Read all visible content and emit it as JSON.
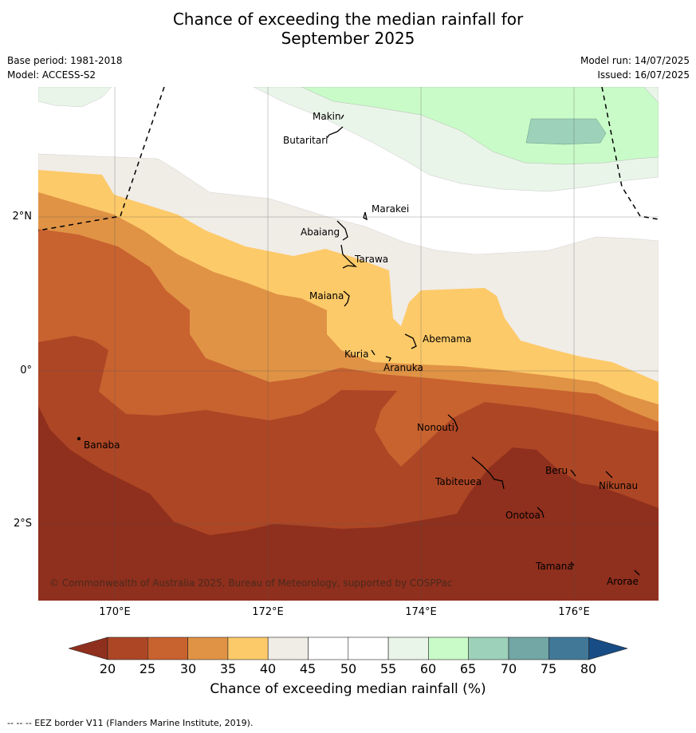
{
  "title_line1": "Chance of exceeding the median rainfall for",
  "title_line2": "September 2025",
  "base_period": "Base period: 1981-2018",
  "model": "Model: ACCESS-S2",
  "model_run": "Model run: 14/07/2025",
  "issued": "Issued: 16/07/2025",
  "copyright": "© Commonwealth of Australia 2025, Bureau of Meteorology, supported by COSPPac",
  "lat_labels": [
    "2°N",
    "0°",
    "2°S"
  ],
  "lon_labels": [
    "170°E",
    "172°E",
    "174°E",
    "176°E"
  ],
  "places": {
    "makin": "Makin",
    "butaritari": "Butaritari",
    "marakei": "Marakei",
    "abaiang": "Abaiang",
    "tarawa": "Tarawa",
    "maiana": "Maiana",
    "abemama": "Abemama",
    "kuria": "Kuria",
    "aranuka": "Aranuka",
    "nonouti": "Nonouti",
    "banaba": "Banaba",
    "beru": "Beru",
    "tabiteuea": "Tabiteuea",
    "nikunau": "Nikunau",
    "onotoa": "Onotoa",
    "tamana": "Tamana",
    "arorae": "Arorae"
  },
  "colorbar_ticks": [
    "20",
    "25",
    "30",
    "35",
    "40",
    "45",
    "50",
    "55",
    "60",
    "65",
    "70",
    "75",
    "80"
  ],
  "colorbar_title": "Chance of exceeding median rainfall (%)",
  "footer": "--  --  -- EEZ border V11 (Flanders Marine Institute, 2019).",
  "colors": {
    "lt20": "#8f2f1d",
    "c20_25": "#ad4625",
    "c25_30": "#c8622f",
    "c30_35": "#e09345",
    "c35_40": "#fdca69",
    "c40_45": "#f0ece6",
    "c45_55": "#ffffff",
    "c55_60": "#eaf5e9",
    "c60_65": "#c9fbc8",
    "c65_70": "#9dd1b9",
    "c70_75": "#72a7a6",
    "c75_80": "#417898",
    "gt80": "#174d84"
  }
}
